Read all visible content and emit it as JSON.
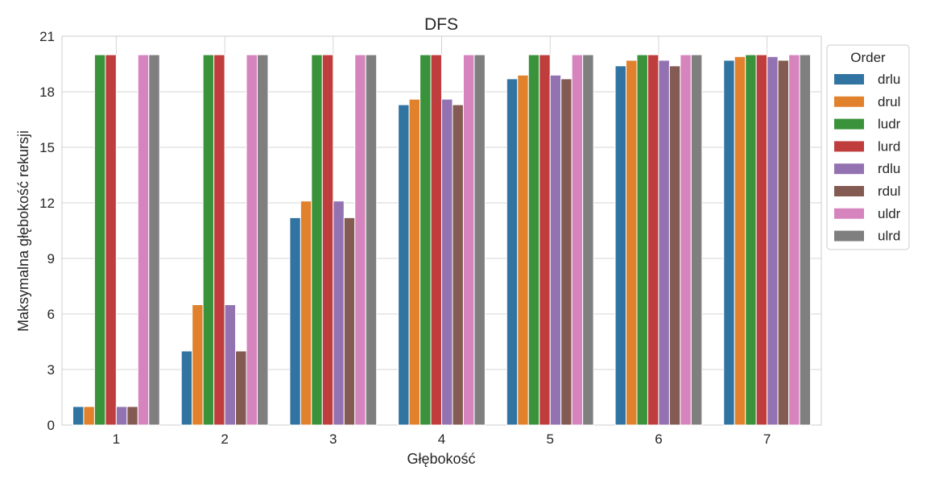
{
  "chart_data": {
    "type": "bar",
    "title": "DFS",
    "xlabel": "Głębokość",
    "ylabel": "Maksymalna głębokość rekursji",
    "categories": [
      "1",
      "2",
      "3",
      "4",
      "5",
      "6",
      "7"
    ],
    "ylim": [
      0,
      21
    ],
    "yticks": [
      "0",
      "3",
      "6",
      "9",
      "12",
      "15",
      "18",
      "21"
    ],
    "grid": true,
    "legend": {
      "title": "Order",
      "placement": "upper right, outside plot"
    },
    "series": [
      {
        "name": "drlu",
        "color": "#3274a1",
        "values": [
          1,
          4,
          11.2,
          17.3,
          18.7,
          19.4,
          19.7
        ]
      },
      {
        "name": "drul",
        "color": "#e1812c",
        "values": [
          1,
          6.5,
          12.1,
          17.6,
          18.9,
          19.7,
          19.9
        ]
      },
      {
        "name": "ludr",
        "color": "#3a923a",
        "values": [
          20,
          20,
          20,
          20,
          20,
          20,
          20
        ]
      },
      {
        "name": "lurd",
        "color": "#c03d3e",
        "values": [
          20,
          20,
          20,
          20,
          20,
          20,
          20
        ]
      },
      {
        "name": "rdlu",
        "color": "#9372b2",
        "values": [
          1,
          6.5,
          12.1,
          17.6,
          18.9,
          19.7,
          19.9
        ]
      },
      {
        "name": "rdul",
        "color": "#845b53",
        "values": [
          1,
          4,
          11.2,
          17.3,
          18.7,
          19.4,
          19.7
        ]
      },
      {
        "name": "uldr",
        "color": "#d684bd",
        "values": [
          20,
          20,
          20,
          20,
          20,
          20,
          20
        ]
      },
      {
        "name": "ulrd",
        "color": "#7f7f7f",
        "values": [
          20,
          20,
          20,
          20,
          20,
          20,
          20
        ]
      }
    ]
  }
}
